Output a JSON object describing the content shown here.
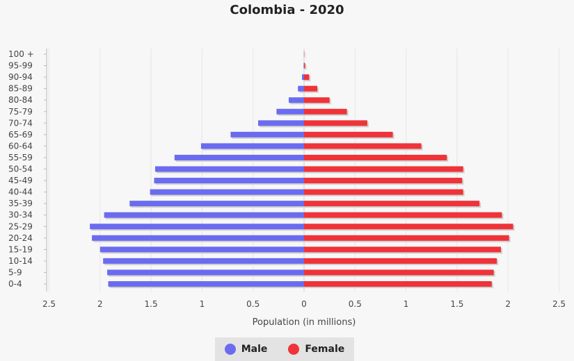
{
  "chart_data": {
    "type": "bar",
    "orientation": "horizontal",
    "title": "Colombia - 2020",
    "xlabel": "Population (in millions)",
    "categories": [
      "100 +",
      "95-99",
      "90-94",
      "85-89",
      "80-84",
      "75-79",
      "70-74",
      "65-69",
      "60-64",
      "55-59",
      "50-54",
      "45-49",
      "40-44",
      "35-39",
      "30-34",
      "25-29",
      "20-24",
      "15-19",
      "10-14",
      "5-9",
      "0-4"
    ],
    "series": [
      {
        "name": "Male",
        "color": "#6b6bf0",
        "values": [
          0.001,
          0.004,
          0.02,
          0.06,
          0.15,
          0.27,
          0.45,
          0.72,
          1.01,
          1.27,
          1.46,
          1.47,
          1.51,
          1.71,
          1.96,
          2.1,
          2.08,
          2.0,
          1.97,
          1.93,
          1.92
        ]
      },
      {
        "name": "Female",
        "color": "#ef3338",
        "values": [
          0.003,
          0.01,
          0.05,
          0.13,
          0.25,
          0.42,
          0.62,
          0.87,
          1.15,
          1.4,
          1.56,
          1.55,
          1.56,
          1.72,
          1.94,
          2.05,
          2.01,
          1.93,
          1.89,
          1.86,
          1.84
        ]
      }
    ],
    "xticks": [
      "2.5",
      "2",
      "1.5",
      "1",
      "0.5",
      "0",
      "0.5",
      "1",
      "1.5",
      "2",
      "2.5"
    ],
    "xlim": [
      -2.5,
      2.5
    ],
    "grid": true,
    "legend_position": "bottom-center"
  }
}
